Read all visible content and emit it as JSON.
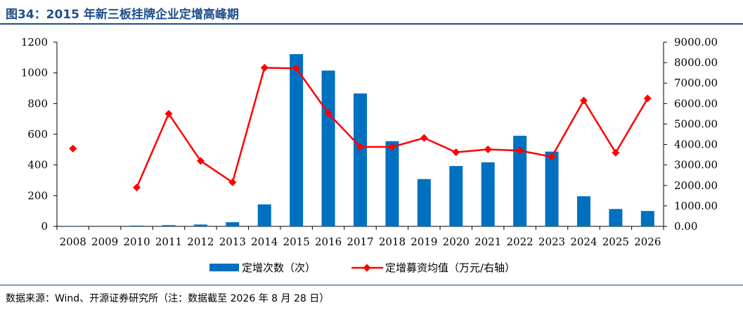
{
  "figure": {
    "title": "图34：2015 年新三板挂牌企业定增高峰期",
    "source": "数据来源：Wind、开源证券研究所（注：数据截至 2026 年 8 月 28 日）"
  },
  "chart_data": {
    "type": "bar",
    "title": "",
    "categories": [
      "2008",
      "2009",
      "2010",
      "2011",
      "2012",
      "2013",
      "2014",
      "2015",
      "2016",
      "2017",
      "2018",
      "2019",
      "2020",
      "2021",
      "2022",
      "2023",
      "2024",
      "2025",
      "2026"
    ],
    "series": [
      {
        "name": "定增次数（次）",
        "type": "bar",
        "axis": "left",
        "color": "#0070c0",
        "values": [
          3,
          0,
          5,
          8,
          12,
          27,
          143,
          1122,
          1015,
          866,
          555,
          308,
          393,
          417,
          590,
          487,
          196,
          113,
          100
        ]
      },
      {
        "name": "定增募资均值（万元/右轴）",
        "type": "line",
        "axis": "right",
        "color": "#ff0000",
        "marker": "diamond",
        "values": [
          3800,
          null,
          1900,
          5500,
          3200,
          2150,
          7750,
          7720,
          5520,
          3880,
          3880,
          4320,
          3620,
          3760,
          3700,
          3400,
          6150,
          3600,
          6250
        ]
      }
    ],
    "y_left": {
      "min": 0,
      "max": 1200,
      "ticks": [
        "0",
        "200",
        "400",
        "600",
        "800",
        "1000",
        "1200"
      ]
    },
    "y_right": {
      "min": 0,
      "max": 9000,
      "ticks": [
        "0.00",
        "1000.00",
        "2000.00",
        "3000.00",
        "4000.00",
        "5000.00",
        "6000.00",
        "7000.00",
        "8000.00",
        "9000.00"
      ]
    },
    "grid": false,
    "legend": "bottom"
  }
}
